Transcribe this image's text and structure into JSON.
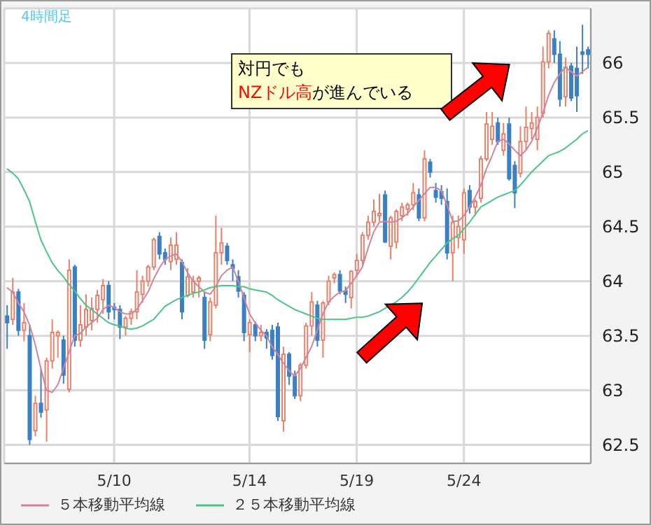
{
  "chart_data": {
    "type": "candlestick",
    "title": "4時間足",
    "categories": [
      null,
      null,
      null,
      null,
      null,
      null,
      null,
      null,
      null,
      null,
      null,
      null,
      null,
      null,
      null,
      null,
      null,
      null,
      null,
      "5/10",
      null,
      null,
      null,
      null,
      null,
      null,
      null,
      null,
      null,
      null,
      null,
      null,
      null,
      null,
      null,
      null,
      null,
      null,
      null,
      null,
      null,
      null,
      null,
      "5/14",
      null,
      null,
      null,
      null,
      null,
      null,
      null,
      null,
      null,
      null,
      null,
      null,
      null,
      null,
      null,
      null,
      null,
      null,
      "5/19",
      null,
      null,
      null,
      null,
      null,
      null,
      null,
      null,
      null,
      null,
      null,
      null,
      null,
      null,
      null,
      null,
      null,
      null,
      "5/24",
      null,
      null,
      null,
      null,
      null,
      null,
      null,
      null,
      null,
      null,
      null,
      null,
      null,
      null,
      null,
      null,
      null,
      null,
      null,
      null,
      null,
      null
    ],
    "ohlc": [
      [
        63.68,
        63.78,
        63.38,
        63.62
      ],
      [
        63.65,
        64.03,
        63.6,
        63.9
      ],
      [
        63.9,
        63.93,
        63.5,
        63.55
      ],
      [
        63.55,
        63.8,
        63.45,
        63.62
      ],
      [
        63.5,
        63.6,
        62.5,
        62.55
      ],
      [
        62.63,
        62.95,
        62.58,
        62.88
      ],
      [
        62.88,
        63.2,
        62.75,
        62.8
      ],
      [
        62.82,
        63.3,
        62.53,
        63.27
      ],
      [
        63.27,
        63.65,
        63.2,
        63.53
      ],
      [
        63.5,
        63.55,
        63.3,
        63.53
      ],
      [
        63.46,
        63.5,
        63.06,
        63.14
      ],
      [
        63.01,
        64.2,
        62.98,
        64.1
      ],
      [
        64.13,
        64.15,
        63.4,
        63.46
      ],
      [
        63.46,
        63.78,
        63.4,
        63.6
      ],
      [
        63.58,
        63.88,
        63.5,
        63.74
      ],
      [
        63.64,
        63.85,
        63.55,
        63.75
      ],
      [
        63.74,
        63.92,
        63.62,
        63.87
      ],
      [
        63.83,
        64.02,
        63.7,
        63.96
      ],
      [
        63.96,
        64.0,
        63.65,
        63.72
      ],
      [
        63.76,
        63.8,
        63.65,
        63.74
      ],
      [
        63.74,
        63.78,
        63.47,
        63.58
      ],
      [
        63.58,
        63.68,
        63.5,
        63.66
      ],
      [
        63.66,
        63.75,
        63.6,
        63.72
      ],
      [
        63.72,
        64.1,
        63.65,
        63.9
      ],
      [
        63.88,
        64.05,
        63.8,
        64.0
      ],
      [
        64.0,
        64.15,
        63.95,
        64.13
      ],
      [
        64.13,
        64.4,
        64.1,
        64.38
      ],
      [
        64.41,
        64.45,
        64.2,
        64.25
      ],
      [
        64.26,
        64.3,
        64.15,
        64.2
      ],
      [
        64.18,
        64.4,
        64.1,
        64.33
      ],
      [
        64.2,
        64.45,
        64.15,
        64.33
      ],
      [
        64.17,
        64.2,
        63.65,
        63.72
      ],
      [
        63.87,
        64.12,
        63.85,
        64.04
      ],
      [
        63.9,
        64.05,
        63.85,
        64.0
      ],
      [
        64.0,
        64.05,
        63.85,
        64.03
      ],
      [
        63.85,
        63.9,
        63.38,
        63.46
      ],
      [
        63.51,
        63.85,
        63.45,
        63.81
      ],
      [
        63.78,
        64.6,
        63.75,
        64.26
      ],
      [
        64.26,
        64.49,
        64.15,
        64.35
      ],
      [
        64.32,
        64.35,
        64.15,
        64.19
      ],
      [
        64.15,
        64.2,
        64.0,
        64.12
      ],
      [
        64.04,
        64.1,
        63.85,
        63.91
      ],
      [
        63.87,
        63.9,
        63.45,
        63.53
      ],
      [
        63.51,
        63.65,
        63.35,
        63.62
      ],
      [
        63.6,
        63.63,
        63.45,
        63.5
      ],
      [
        63.5,
        63.6,
        63.45,
        63.53
      ],
      [
        63.53,
        63.56,
        63.38,
        63.48
      ],
      [
        63.55,
        63.6,
        63.28,
        63.32
      ],
      [
        63.58,
        63.62,
        62.72,
        62.76
      ],
      [
        62.72,
        63.4,
        62.62,
        63.33
      ],
      [
        63.33,
        63.35,
        63.05,
        63.13
      ],
      [
        63.13,
        63.18,
        62.92,
        62.95
      ],
      [
        62.95,
        63.25,
        62.9,
        63.23
      ],
      [
        63.23,
        63.62,
        63.2,
        63.59
      ],
      [
        63.59,
        63.9,
        63.5,
        63.81
      ],
      [
        63.78,
        63.82,
        63.4,
        63.46
      ],
      [
        63.46,
        63.82,
        63.3,
        63.8
      ],
      [
        63.81,
        64.05,
        63.78,
        64.0
      ],
      [
        64.03,
        64.08,
        63.98,
        64.06
      ],
      [
        64.06,
        64.1,
        63.88,
        63.91
      ],
      [
        63.91,
        63.95,
        63.8,
        63.88
      ],
      [
        63.85,
        64.1,
        63.75,
        64.09
      ],
      [
        64.1,
        64.25,
        64.05,
        64.19
      ],
      [
        64.19,
        64.45,
        64.15,
        64.42
      ],
      [
        64.42,
        64.6,
        64.38,
        64.54
      ],
      [
        64.54,
        64.75,
        64.5,
        64.64
      ],
      [
        64.6,
        64.8,
        64.55,
        64.62
      ],
      [
        64.79,
        64.83,
        64.35,
        64.36
      ],
      [
        64.32,
        64.6,
        64.2,
        64.58
      ],
      [
        64.36,
        64.66,
        64.3,
        64.64
      ],
      [
        64.6,
        64.72,
        64.55,
        64.68
      ],
      [
        64.66,
        64.72,
        64.6,
        64.7
      ],
      [
        64.7,
        64.9,
        64.65,
        64.81
      ],
      [
        64.79,
        64.85,
        64.55,
        64.58
      ],
      [
        64.58,
        65.2,
        64.55,
        65.12
      ],
      [
        65.09,
        65.12,
        64.95,
        65.0
      ],
      [
        64.83,
        64.9,
        64.72,
        64.77
      ],
      [
        64.82,
        64.88,
        64.7,
        64.76
      ],
      [
        64.73,
        64.85,
        64.2,
        64.26
      ],
      [
        64.26,
        64.6,
        64.0,
        64.54
      ],
      [
        64.4,
        64.6,
        64.3,
        64.5
      ],
      [
        64.38,
        64.85,
        64.25,
        64.81
      ],
      [
        64.83,
        64.88,
        64.62,
        64.68
      ],
      [
        64.68,
        64.75,
        64.6,
        64.73
      ],
      [
        64.76,
        65.15,
        64.72,
        65.12
      ],
      [
        65.12,
        65.55,
        65.1,
        65.44
      ],
      [
        65.3,
        65.55,
        65.25,
        65.42
      ],
      [
        65.45,
        65.5,
        65.25,
        65.28
      ],
      [
        65.2,
        65.45,
        65.15,
        65.35
      ],
      [
        65.44,
        65.5,
        64.92,
        64.94
      ],
      [
        65.06,
        65.1,
        64.67,
        64.81
      ],
      [
        64.99,
        65.42,
        64.95,
        65.28
      ],
      [
        65.28,
        65.6,
        65.2,
        65.41
      ],
      [
        65.4,
        65.55,
        65.3,
        65.45
      ],
      [
        65.3,
        65.6,
        65.2,
        65.5
      ],
      [
        65.54,
        66.15,
        65.5,
        66.01
      ],
      [
        66.01,
        66.3,
        65.95,
        66.27
      ],
      [
        66.22,
        66.3,
        66.0,
        66.08
      ],
      [
        66.08,
        66.2,
        65.6,
        65.67
      ],
      [
        65.69,
        66.05,
        65.6,
        65.96
      ],
      [
        65.97,
        66.0,
        65.65,
        65.68
      ],
      [
        65.95,
        66.15,
        65.55,
        65.7
      ],
      [
        66.1,
        66.35,
        65.9,
        66.08
      ],
      [
        66.12,
        66.15,
        65.95,
        66.08
      ]
    ],
    "series": [
      {
        "name": "５本移動平均線",
        "type": "line",
        "color": "#d0849c",
        "values": [
          63.94,
          63.9,
          63.8,
          63.72,
          63.6,
          63.42,
          63.2,
          63.0,
          62.98,
          63.05,
          63.2,
          63.35,
          63.5,
          63.52,
          63.58,
          63.62,
          63.66,
          63.74,
          63.78,
          63.76,
          63.72,
          63.7,
          63.7,
          63.74,
          63.82,
          63.9,
          64.02,
          64.12,
          64.2,
          64.23,
          64.25,
          64.18,
          64.08,
          64.0,
          63.95,
          63.9,
          63.88,
          63.95,
          64.05,
          64.1,
          64.13,
          64.0,
          63.85,
          63.7,
          63.62,
          63.55,
          63.5,
          63.4,
          63.33,
          63.25,
          63.18,
          63.13,
          63.2,
          63.3,
          63.4,
          63.55,
          63.7,
          63.81,
          63.86,
          63.9,
          63.91,
          63.98,
          64.05,
          64.13,
          64.3,
          64.45,
          64.54,
          64.55,
          64.54,
          64.55,
          64.58,
          64.62,
          64.68,
          64.74,
          64.8,
          64.86,
          64.86,
          64.83,
          64.7,
          64.55,
          64.55,
          64.6,
          64.68,
          64.77,
          64.88,
          65.03,
          65.15,
          65.28,
          65.3,
          65.26,
          65.2,
          65.15,
          65.2,
          65.28,
          65.4,
          65.54,
          65.7,
          65.82,
          65.9,
          65.96,
          65.92,
          65.88,
          65.92,
          65.96
        ]
      },
      {
        "name": "２５本移動平均線",
        "type": "line",
        "color": "#4cc487",
        "values": [
          65.03,
          64.99,
          64.94,
          64.84,
          64.73,
          64.55,
          64.38,
          64.27,
          64.17,
          64.1,
          64.04,
          63.97,
          63.91,
          63.84,
          63.78,
          63.74,
          63.7,
          63.66,
          63.62,
          63.6,
          63.59,
          63.57,
          63.56,
          63.57,
          63.59,
          63.62,
          63.65,
          63.71,
          63.77,
          63.8,
          63.83,
          63.85,
          63.87,
          63.89,
          63.9,
          63.92,
          63.94,
          63.95,
          63.96,
          63.96,
          63.96,
          63.95,
          63.95,
          63.93,
          63.92,
          63.91,
          63.9,
          63.87,
          63.83,
          63.8,
          63.77,
          63.74,
          63.72,
          63.7,
          63.68,
          63.66,
          63.65,
          63.65,
          63.65,
          63.65,
          63.65,
          63.66,
          63.67,
          63.67,
          63.68,
          63.7,
          63.72,
          63.75,
          63.78,
          63.81,
          63.85,
          63.9,
          63.96,
          64.03,
          64.1,
          64.17,
          64.23,
          64.29,
          64.35,
          64.39,
          64.42,
          64.48,
          64.54,
          64.61,
          64.68,
          64.71,
          64.74,
          64.77,
          64.79,
          64.81,
          64.83,
          64.88,
          64.94,
          65.0,
          65.05,
          65.1,
          65.15,
          65.17,
          65.19,
          65.22,
          65.26,
          65.3,
          65.35,
          65.38
        ]
      }
    ],
    "ylim": [
      62.33,
      66.5
    ],
    "yticks": [
      62.5,
      63,
      63.5,
      64,
      64.5,
      65,
      65.5,
      66
    ],
    "grid": true,
    "legend": "bottom",
    "annotations": [
      "対円でも",
      "NZドル高",
      "が進んでいる"
    ]
  }
}
